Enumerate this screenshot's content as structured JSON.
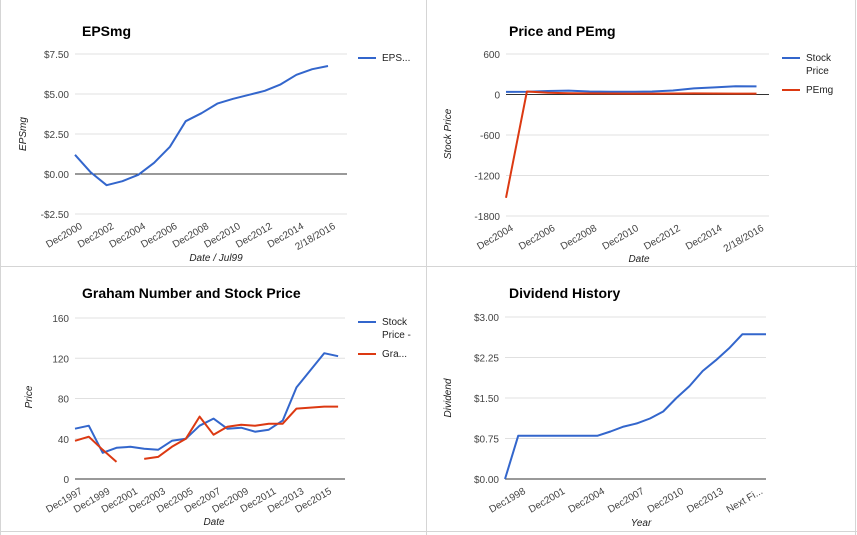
{
  "chart_data": [
    {
      "id": "eps",
      "type": "line",
      "title": "EPSmg",
      "xlabel": "Date / Jul99",
      "ylabel": "EPSmg",
      "ytick_labels": [
        "$7.50",
        "$5.00",
        "$2.50",
        "$0.00",
        "-$2.50"
      ],
      "ytick_values": [
        7.5,
        5.0,
        2.5,
        0.0,
        -2.5
      ],
      "ylim": [
        -2.5,
        7.5
      ],
      "grid": true,
      "legend_position": "right",
      "x_tick_labels": [
        "Dec2000",
        "Dec2002",
        "Dec2004",
        "Dec2006",
        "Dec2008",
        "Dec2010",
        "Dec2012",
        "Dec2014",
        "2/18/2016"
      ],
      "x_tick_positions": [
        0,
        2,
        4,
        6,
        8,
        10,
        12,
        14,
        16
      ],
      "xlim": [
        0,
        17.2
      ],
      "series": [
        {
          "name": "EPS...",
          "color": "#3366cc",
          "x": [
            0,
            1,
            2,
            3,
            4,
            5,
            6,
            7,
            8,
            9,
            10,
            11,
            12,
            13,
            14,
            15,
            16,
            17
          ],
          "values": [
            1.2,
            0.1,
            -0.7,
            -0.45,
            -0.05,
            0.7,
            1.7,
            3.3,
            3.8,
            4.4,
            4.7,
            4.95,
            5.2,
            5.6,
            6.2,
            6.55,
            6.75,
            null
          ]
        }
      ]
    },
    {
      "id": "price_pe",
      "type": "line",
      "title": "Price and PEmg",
      "xlabel": "Date",
      "ylabel": "Stock Price",
      "ytick_labels": [
        "600",
        "0",
        "-600",
        "-1200",
        "-1800"
      ],
      "ytick_values": [
        600,
        0,
        -600,
        -1200,
        -1800
      ],
      "ylim": [
        -1800,
        600
      ],
      "grid": true,
      "legend_position": "right",
      "x_tick_labels": [
        "Dec2004",
        "Dec2006",
        "Dec2008",
        "Dec2010",
        "Dec2012",
        "Dec2014",
        "2/18/2016"
      ],
      "x_tick_positions": [
        0,
        2,
        4,
        6,
        8,
        10,
        12
      ],
      "xlim": [
        0,
        12.6
      ],
      "series": [
        {
          "name": "Stock Price",
          "color": "#3366cc",
          "x": [
            0,
            1,
            2,
            3,
            4,
            5,
            6,
            7,
            8,
            9,
            10,
            11,
            12
          ],
          "values": [
            38,
            40,
            52,
            58,
            45,
            42,
            40,
            45,
            60,
            90,
            105,
            122,
            120
          ]
        },
        {
          "name": "PEmg",
          "color": "#dc3912",
          "x": [
            0,
            1,
            2,
            3,
            4,
            5,
            6,
            7,
            8,
            9,
            10,
            11,
            12
          ],
          "values": [
            -1530,
            45,
            25,
            18,
            16,
            15,
            14,
            14,
            15,
            16,
            15,
            14,
            14
          ]
        }
      ]
    },
    {
      "id": "graham",
      "type": "line",
      "title": "Graham Number and Stock Price",
      "xlabel": "Date",
      "ylabel": "Price",
      "ytick_labels": [
        "160",
        "120",
        "80",
        "40",
        "0"
      ],
      "ytick_values": [
        160,
        120,
        80,
        40,
        0
      ],
      "ylim": [
        0,
        160
      ],
      "grid": true,
      "legend_position": "right",
      "x_tick_labels": [
        "Dec1997",
        "Dec1999",
        "Dec2001",
        "Dec2003",
        "Dec2005",
        "Dec2007",
        "Dec2009",
        "Dec2011",
        "Dec2013",
        "Dec2015"
      ],
      "x_tick_positions": [
        0,
        2,
        4,
        6,
        8,
        10,
        12,
        14,
        16,
        18
      ],
      "xlim": [
        0,
        19.5
      ],
      "series": [
        {
          "name": "Stock Price -",
          "color": "#3366cc",
          "x": [
            0,
            1,
            2,
            3,
            4,
            5,
            6,
            7,
            8,
            9,
            10,
            11,
            12,
            13,
            14,
            15,
            16,
            17,
            18,
            19
          ],
          "values": [
            50,
            53,
            26,
            31,
            32,
            30,
            29,
            38,
            40,
            53,
            60,
            50,
            51,
            47,
            49,
            58,
            91,
            108,
            125,
            122
          ]
        },
        {
          "name": "Gra...",
          "color": "#dc3912",
          "x": [
            0,
            1,
            2,
            3,
            4,
            5,
            6,
            7,
            8,
            9,
            10,
            11,
            12,
            13,
            14,
            15,
            16,
            17,
            18,
            19
          ],
          "values": [
            38,
            42,
            29,
            17,
            null,
            20,
            22,
            32,
            40,
            62,
            44,
            52,
            54,
            53,
            55,
            55,
            70,
            71,
            72,
            72
          ]
        }
      ]
    },
    {
      "id": "dividend",
      "type": "line",
      "title": "Dividend History",
      "xlabel": "Year",
      "ylabel": "Dividend",
      "ytick_labels": [
        "$3.00",
        "$2.25",
        "$1.50",
        "$0.75",
        "$0.00"
      ],
      "ytick_values": [
        3.0,
        2.25,
        1.5,
        0.75,
        0.0
      ],
      "ylim": [
        0,
        3.0
      ],
      "grid": true,
      "legend_position": "none",
      "x_tick_labels": [
        "Dec1998",
        "Dec2001",
        "Dec2004",
        "Dec2007",
        "Dec2010",
        "Dec2013",
        "Next Fi..."
      ],
      "x_tick_positions": [
        1,
        4,
        7,
        10,
        13,
        16,
        19
      ],
      "xlim": [
        0,
        19.8
      ],
      "series": [
        {
          "name": "Dividend",
          "color": "#3366cc",
          "x": [
            0,
            1,
            2,
            3,
            4,
            5,
            6,
            7,
            8,
            9,
            10,
            11,
            12,
            13,
            14,
            15,
            16,
            17,
            18,
            19,
            19.8
          ],
          "values": [
            0.0,
            0.8,
            0.8,
            0.8,
            0.8,
            0.8,
            0.8,
            0.8,
            0.88,
            0.97,
            1.03,
            1.12,
            1.25,
            1.5,
            1.72,
            2.0,
            2.2,
            2.42,
            2.68,
            2.68,
            2.68
          ]
        }
      ]
    }
  ]
}
